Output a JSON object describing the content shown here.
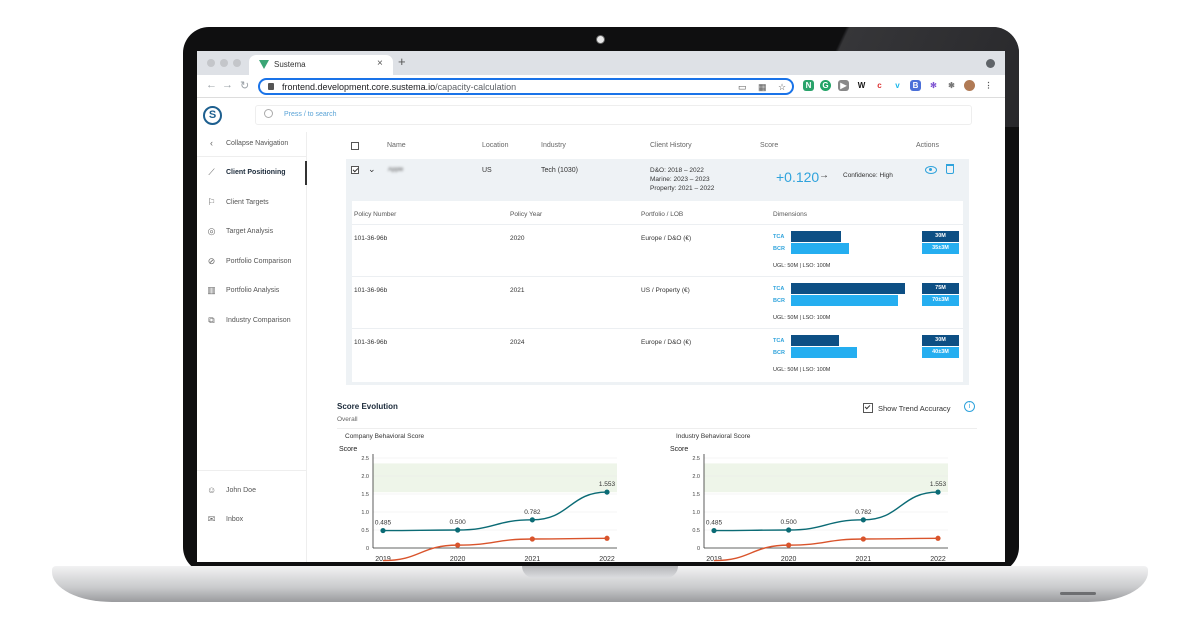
{
  "browser": {
    "tab_title": "Sustema",
    "url_host": "frontend.development.core.sustema.io",
    "url_path": "/capacity-calculation"
  },
  "app": {
    "logo": "S",
    "search_placeholder": "Press / to search"
  },
  "sidebar": {
    "collapse": "Collapse Navigation",
    "items": [
      {
        "label": "Client Positioning",
        "icon": "line-chart-icon"
      },
      {
        "label": "Client Targets",
        "icon": "bookmark-icon"
      },
      {
        "label": "Target Analysis",
        "icon": "target-icon"
      },
      {
        "label": "Portfolio Comparison",
        "icon": "compare-icon"
      },
      {
        "label": "Portfolio Analysis",
        "icon": "bar-chart-icon"
      },
      {
        "label": "Industry Comparison",
        "icon": "layers-icon"
      }
    ],
    "user": "John Doe",
    "inbox": "Inbox"
  },
  "table": {
    "headers": {
      "name": "Name",
      "location": "Location",
      "industry": "Industry",
      "history": "Client History",
      "score": "Score",
      "actions": "Actions"
    },
    "client": {
      "name": "Apple",
      "location": "US",
      "industry": "Tech (1030)",
      "history": [
        "D&O: 2018 – 2022",
        "Marine: 2023 – 2023",
        "Property: 2021 – 2022"
      ],
      "score": "+0.120",
      "arrow": "→",
      "confidence": "Confidence: High"
    }
  },
  "policies": {
    "headers": {
      "number": "Policy Number",
      "year": "Policy Year",
      "portfolio": "Portfolio / LOB",
      "dimensions": "Dimensions"
    },
    "tca_label": "TCA",
    "bcr_label": "BCR",
    "rows": [
      {
        "number": "101-36-96b",
        "year": "2020",
        "portfolio": "Europe / D&O (€)",
        "tca": "30M",
        "bcr": "35±3M",
        "tca_frac": 0.44,
        "bcr_frac": 0.51,
        "ugl": "UGL: 50M | LSO: 100M"
      },
      {
        "number": "101-36-96b",
        "year": "2021",
        "portfolio": "US / Property (€)",
        "tca": "75M",
        "bcr": "70±3M",
        "tca_frac": 1.0,
        "bcr_frac": 0.94,
        "ugl": "UGL: 50M | LSO: 100M"
      },
      {
        "number": "101-36-96b",
        "year": "2024",
        "portfolio": "Europe / D&O (€)",
        "tca": "30M",
        "bcr": "40±3M",
        "tca_frac": 0.42,
        "bcr_frac": 0.58,
        "ugl": "UGL: 50M | LSO: 100M"
      }
    ]
  },
  "evolution": {
    "title": "Score Evolution",
    "subtitle": "Overall",
    "trend_label": "Show Trend Accuracy",
    "info": "i"
  },
  "chart_data": [
    {
      "type": "line",
      "title": "Company Behavioral Score",
      "ylabel": "Score",
      "x": [
        "2019",
        "2020",
        "2021",
        "2022"
      ],
      "ylim": [
        0,
        2.5
      ],
      "yticks": [
        "0",
        "0.5",
        "1.0",
        "1.5",
        "2.0",
        "2.5"
      ],
      "series": [
        {
          "values": [
            0.485,
            0.5,
            0.782,
            1.553
          ],
          "labels": [
            "0.485",
            "0.500",
            "0.782",
            "1.553"
          ],
          "color": "#0b6b75"
        },
        {
          "values": [
            -0.35,
            0.08,
            0.25,
            0.27
          ],
          "color": "#d9542c"
        }
      ]
    },
    {
      "type": "line",
      "title": "Industry Behavioral Score",
      "ylabel": "Score",
      "x": [
        "2019",
        "2020",
        "2021",
        "2022"
      ],
      "ylim": [
        0,
        2.5
      ],
      "yticks": [
        "0",
        "0.5",
        "1.0",
        "1.5",
        "2.0",
        "2.5"
      ],
      "series": [
        {
          "values": [
            0.485,
            0.5,
            0.782,
            1.553
          ],
          "labels": [
            "0.485",
            "0.500",
            "0.782",
            "1.553"
          ],
          "color": "#0b6b75"
        },
        {
          "values": [
            -0.35,
            0.08,
            0.25,
            0.27
          ],
          "color": "#d9542c"
        }
      ]
    }
  ]
}
